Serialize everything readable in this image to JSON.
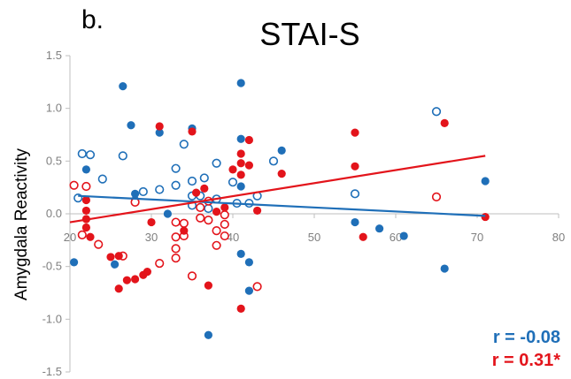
{
  "panel_label": "b.",
  "chart_data": {
    "type": "scatter",
    "title": "STAI-S",
    "xlabel": "",
    "ylabel": "Amygdala Reactivity",
    "xlim": [
      20,
      80
    ],
    "ylim": [
      -1.5,
      1.5
    ],
    "x_ticks": [
      20,
      30,
      40,
      50,
      60,
      70,
      80
    ],
    "y_ticks": [
      -1.5,
      -1.0,
      -0.5,
      0.0,
      0.5,
      1.0,
      1.5
    ],
    "x_tick_labels": [
      "20",
      "30",
      "40",
      "50",
      "60",
      "70",
      "80"
    ],
    "y_tick_labels": [
      "-1.5",
      "-1.0",
      "-0.5",
      "0.0",
      "0.5",
      "1.0",
      "1.5"
    ],
    "grid": false,
    "colors": {
      "blue": "#1f6fb8",
      "red": "#e3141b",
      "axis": "#bfbfbf",
      "tick": "#7f7f7f"
    },
    "series": [
      {
        "color": "blue",
        "points_filled": [
          [
            20.5,
            -0.46
          ],
          [
            22,
            0.42
          ],
          [
            25.5,
            -0.48
          ],
          [
            26.5,
            1.21
          ],
          [
            27.5,
            0.84
          ],
          [
            28,
            0.19
          ],
          [
            28,
            0.13
          ],
          [
            31,
            0.77
          ],
          [
            35,
            0.81
          ],
          [
            37,
            -1.15
          ],
          [
            41,
            1.24
          ],
          [
            41,
            0.71
          ],
          [
            41,
            0.26
          ],
          [
            41,
            -0.38
          ],
          [
            42,
            -0.46
          ],
          [
            42,
            -0.73
          ],
          [
            46,
            0.6
          ],
          [
            55,
            -0.08
          ],
          [
            58,
            -0.14
          ],
          [
            61,
            -0.21
          ],
          [
            66,
            -0.52
          ],
          [
            71,
            0.31
          ],
          [
            32,
            0.0
          ]
        ],
        "points_open": [
          [
            21.5,
            0.57
          ],
          [
            22.5,
            0.56
          ],
          [
            24,
            0.33
          ],
          [
            21,
            0.15
          ],
          [
            26.5,
            0.55
          ],
          [
            29,
            0.21
          ],
          [
            31,
            0.23
          ],
          [
            33,
            0.43
          ],
          [
            33,
            0.27
          ],
          [
            34,
            0.66
          ],
          [
            35,
            0.31
          ],
          [
            35,
            0.17
          ],
          [
            36,
            0.17
          ],
          [
            36.5,
            0.34
          ],
          [
            35,
            0.08
          ],
          [
            37,
            0.05
          ],
          [
            38,
            0.48
          ],
          [
            38,
            0.14
          ],
          [
            40,
            0.3
          ],
          [
            40.5,
            0.1
          ],
          [
            42,
            0.1
          ],
          [
            43,
            0.17
          ],
          [
            45,
            0.5
          ],
          [
            55,
            0.19
          ],
          [
            65,
            0.97
          ]
        ],
        "trendline": [
          [
            21,
            0.17
          ],
          [
            71,
            -0.02
          ]
        ],
        "stat_label": "r = -0.08"
      },
      {
        "color": "red",
        "points_filled": [
          [
            22,
            0.13
          ],
          [
            22,
            0.03
          ],
          [
            22,
            -0.05
          ],
          [
            22,
            -0.13
          ],
          [
            22.5,
            -0.22
          ],
          [
            25,
            -0.41
          ],
          [
            26,
            -0.4
          ],
          [
            26,
            -0.71
          ],
          [
            27,
            -0.63
          ],
          [
            28,
            -0.62
          ],
          [
            29,
            -0.58
          ],
          [
            29.5,
            -0.55
          ],
          [
            30,
            -0.08
          ],
          [
            31,
            0.83
          ],
          [
            34,
            -0.16
          ],
          [
            35,
            0.78
          ],
          [
            35.5,
            0.2
          ],
          [
            36.5,
            0.24
          ],
          [
            37,
            -0.68
          ],
          [
            38,
            0.02
          ],
          [
            39,
            0.06
          ],
          [
            40,
            0.42
          ],
          [
            41,
            0.57
          ],
          [
            41,
            0.48
          ],
          [
            41,
            0.37
          ],
          [
            41,
            -0.9
          ],
          [
            42,
            0.7
          ],
          [
            42,
            0.46
          ],
          [
            43,
            0.03
          ],
          [
            46,
            0.38
          ],
          [
            55,
            0.77
          ],
          [
            55,
            0.45
          ],
          [
            66,
            0.86
          ],
          [
            71,
            -0.03
          ],
          [
            56,
            -0.22
          ]
        ],
        "points_open": [
          [
            20.5,
            0.27
          ],
          [
            22,
            0.26
          ],
          [
            21.5,
            -0.2
          ],
          [
            23.5,
            -0.29
          ],
          [
            26.5,
            -0.4
          ],
          [
            28,
            0.11
          ],
          [
            31,
            -0.47
          ],
          [
            33,
            -0.08
          ],
          [
            33,
            -0.22
          ],
          [
            33,
            -0.33
          ],
          [
            33,
            -0.42
          ],
          [
            34,
            -0.09
          ],
          [
            34,
            -0.21
          ],
          [
            35,
            -0.59
          ],
          [
            36,
            0.06
          ],
          [
            36,
            -0.04
          ],
          [
            37,
            0.12
          ],
          [
            37,
            -0.06
          ],
          [
            38,
            -0.16
          ],
          [
            38,
            -0.3
          ],
          [
            39,
            -0.01
          ],
          [
            39,
            -0.1
          ],
          [
            39,
            -0.21
          ],
          [
            43,
            -0.69
          ],
          [
            65,
            0.16
          ]
        ],
        "trendline": [
          [
            20,
            -0.08
          ],
          [
            71,
            0.55
          ]
        ],
        "stat_label": "r = 0.31*"
      }
    ]
  }
}
